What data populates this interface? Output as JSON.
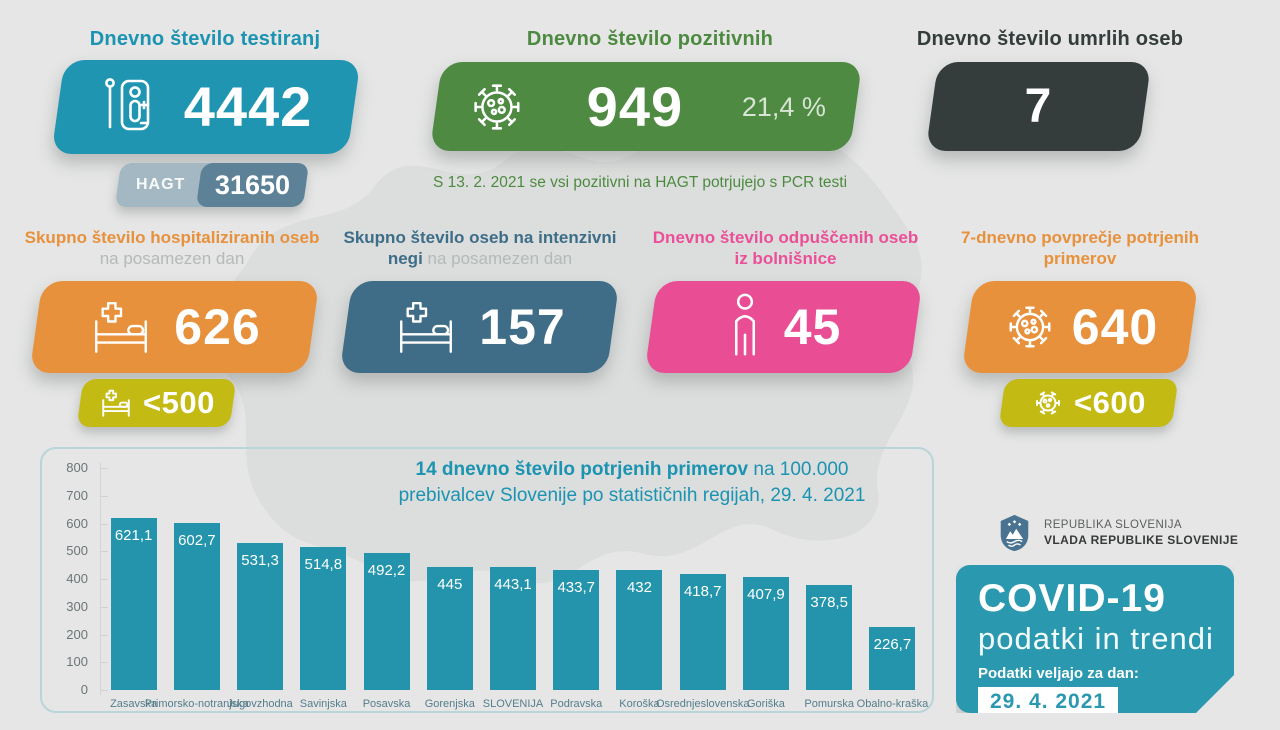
{
  "top": {
    "tests": {
      "title": "Dnevno število testiranj",
      "value": "4442",
      "hagt_label": "HAGT",
      "hagt_value": "31650",
      "color": "#2095b2"
    },
    "positive": {
      "title": "Dnevno število pozitivnih",
      "value": "949",
      "percent": "21,4 %",
      "note": "S 13. 2. 2021 se vsi pozitivni na HAGT potrjujejo s PCR testi",
      "color": "#4e8a41"
    },
    "deaths": {
      "title": "Dnevno število umrlih oseb",
      "value": "7",
      "color": "#343d3c"
    }
  },
  "middle": {
    "hospitalized": {
      "title_strong": "Skupno število hospitaliziranih oseb",
      "title_rest": " na posamezen dan",
      "value": "626",
      "badge": "<500",
      "color": "#e8913c"
    },
    "icu": {
      "title_strong": "Skupno število oseb na intenzivni negi",
      "title_rest": " na posamezen dan",
      "value": "157",
      "color": "#3f6d87"
    },
    "discharged": {
      "title": "Dnevno število odpuščenih oseb iz bolnišnice",
      "value": "45",
      "color": "#e94e95"
    },
    "avg7": {
      "title": "7-dnevno povprečje potrjenih primerov",
      "value": "640",
      "badge": "<600",
      "color": "#e8913c"
    }
  },
  "badge_color": "#c4ba14",
  "chart_data": {
    "type": "bar",
    "title_strong": "14 dnevno število potrjenih primerov",
    "title_rest": " na 100.000",
    "subtitle": "prebivalcev Slovenije po statističnih regijah, 29. 4. 2021",
    "categories": [
      "Zasavska",
      "Primorsko-notranjska",
      "Jugovzhodna",
      "Savinjska",
      "Posavska",
      "Gorenjska",
      "SLOVENIJA",
      "Podravska",
      "Koroška",
      "Osrednjeslovenska",
      "Goriška",
      "Pomurska",
      "Obalno-kraška"
    ],
    "values": [
      621.1,
      602.7,
      531.3,
      514.8,
      492.2,
      445,
      443.1,
      433.7,
      432,
      418.7,
      407.9,
      378.5,
      226.7
    ],
    "value_labels": [
      "621,1",
      "602,7",
      "531,3",
      "514,8",
      "492,2",
      "445",
      "443,1",
      "433,7",
      "432",
      "418,7",
      "407,9",
      "378,5",
      "226,7"
    ],
    "xlabel": "",
    "ylabel": "",
    "ylim": [
      0,
      800
    ],
    "yticks": [
      0,
      100,
      200,
      300,
      400,
      500,
      600,
      700,
      800
    ],
    "grid": false,
    "legend": "none",
    "bar_color": "#2394ab"
  },
  "footer": {
    "gov_line1": "REPUBLIKA SLOVENIJA",
    "gov_line2": "VLADA REPUBLIKE SLOVENIJE",
    "covid_title": "COVID-19",
    "covid_subtitle": "podatki in trendi",
    "covid_caption": "Podatki veljajo za dan:",
    "covid_date": "29. 4. 2021"
  }
}
